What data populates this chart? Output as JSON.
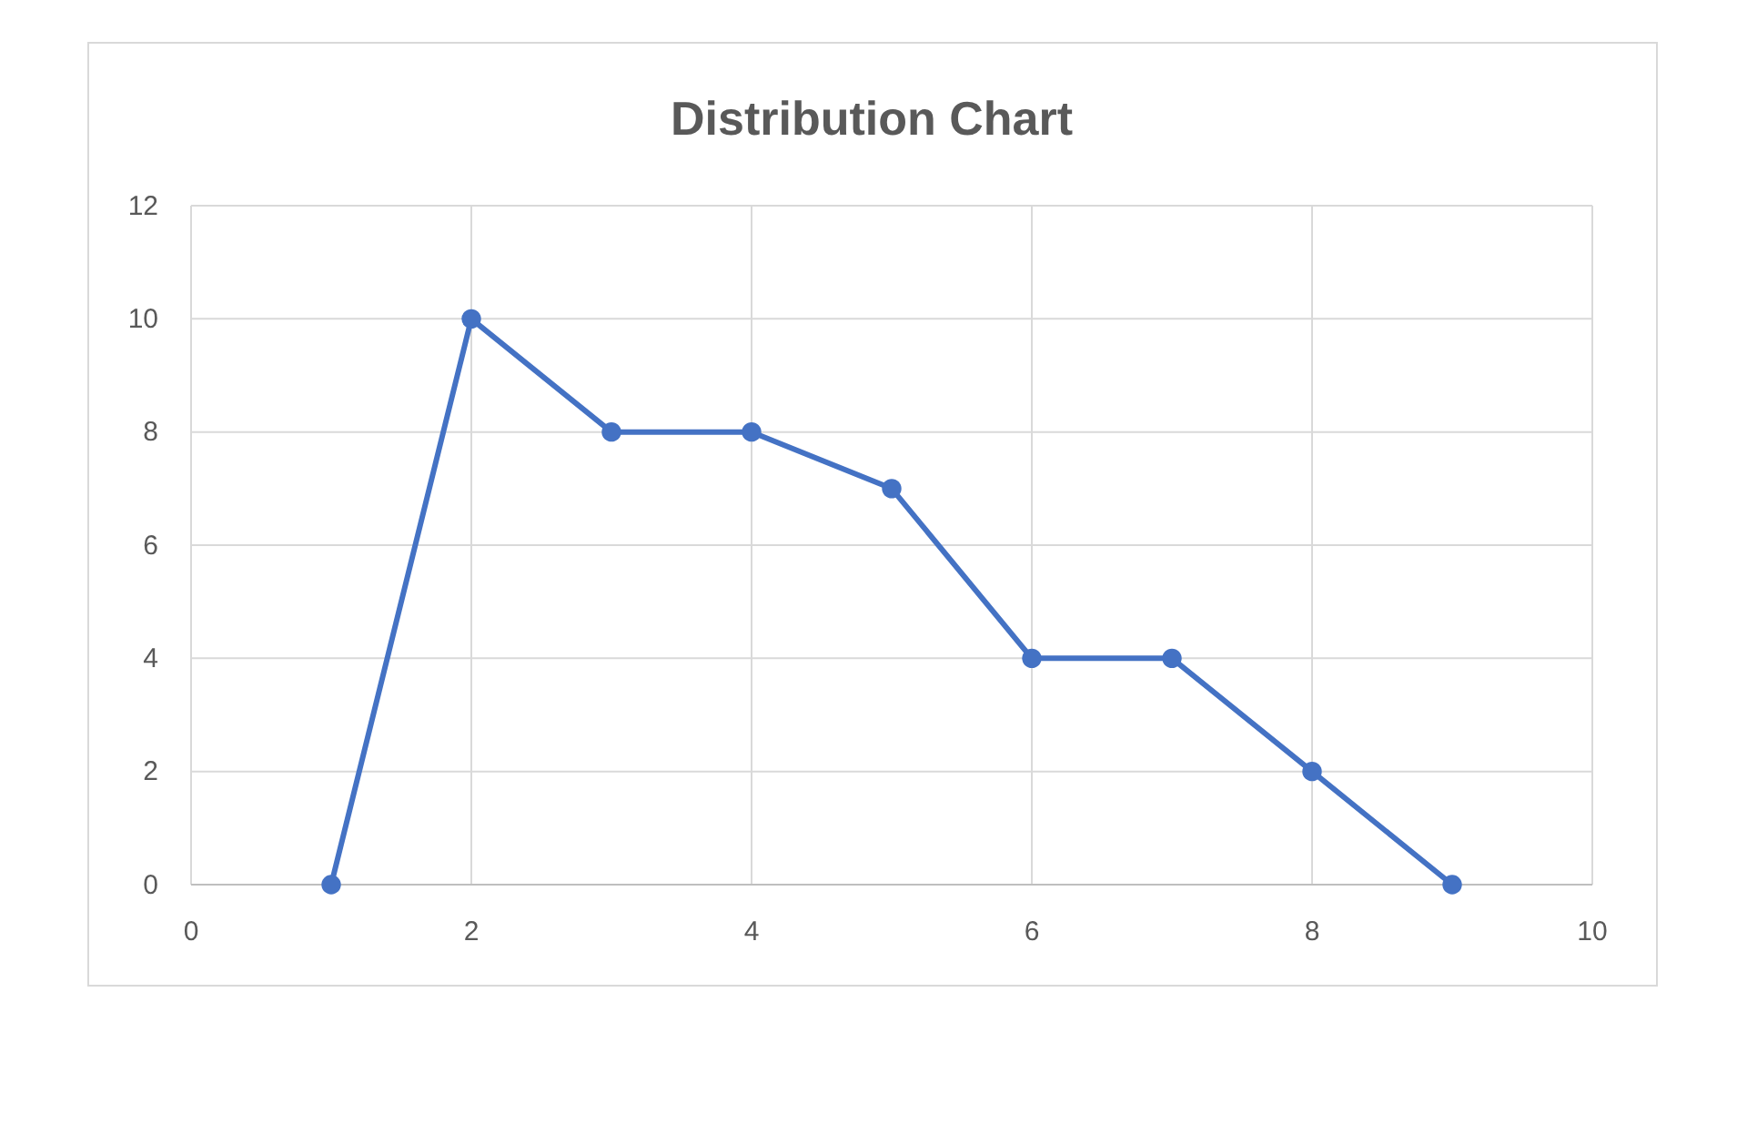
{
  "chart_data": {
    "type": "line",
    "title": "Distribution Chart",
    "x": [
      1,
      2,
      3,
      4,
      5,
      6,
      7,
      8,
      9
    ],
    "series": [
      {
        "color": "#4472c4",
        "values": [
          0,
          10,
          8,
          8,
          7,
          4,
          4,
          2,
          0
        ]
      }
    ],
    "xlim": [
      0,
      10
    ],
    "xticks": [
      0,
      2,
      4,
      6,
      8,
      10
    ],
    "ylim": [
      0,
      12
    ],
    "yticks": [
      0,
      2,
      4,
      6,
      8,
      10,
      12
    ],
    "grid": true,
    "marker": "circle",
    "line_style": "solid"
  }
}
